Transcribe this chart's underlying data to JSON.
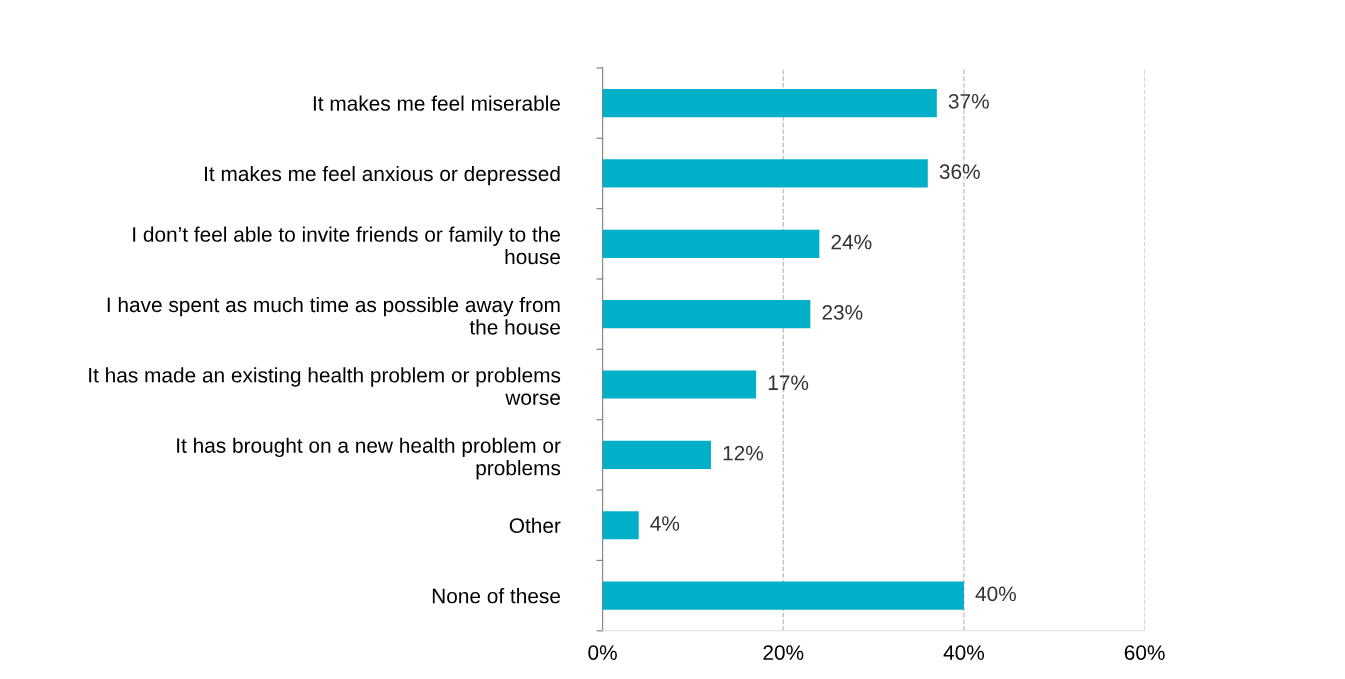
{
  "chart_data": {
    "type": "bar",
    "orientation": "horizontal",
    "categories": [
      "It makes me feel miserable",
      "It makes me feel anxious or depressed",
      "I don’t feel able to invite friends or family to the\nhouse",
      "I have spent as much time as possible away from\nthe house",
      "It has made an existing health problem or problems\nworse",
      "It has brought on a new health problem or\nproblems",
      "Other",
      "None of these"
    ],
    "values": [
      37,
      36,
      24,
      23,
      17,
      12,
      4,
      40
    ],
    "value_labels": [
      "37%",
      "36%",
      "24%",
      "23%",
      "17%",
      "12%",
      "4%",
      "40%"
    ],
    "color": "#00afc8",
    "xlim": [
      0,
      60
    ],
    "xticks": [
      {
        "value": 0,
        "label": "0%"
      },
      {
        "value": 20,
        "label": "20%"
      },
      {
        "value": 40,
        "label": "40%"
      },
      {
        "value": 60,
        "label": "60%"
      }
    ],
    "grid": "x"
  }
}
